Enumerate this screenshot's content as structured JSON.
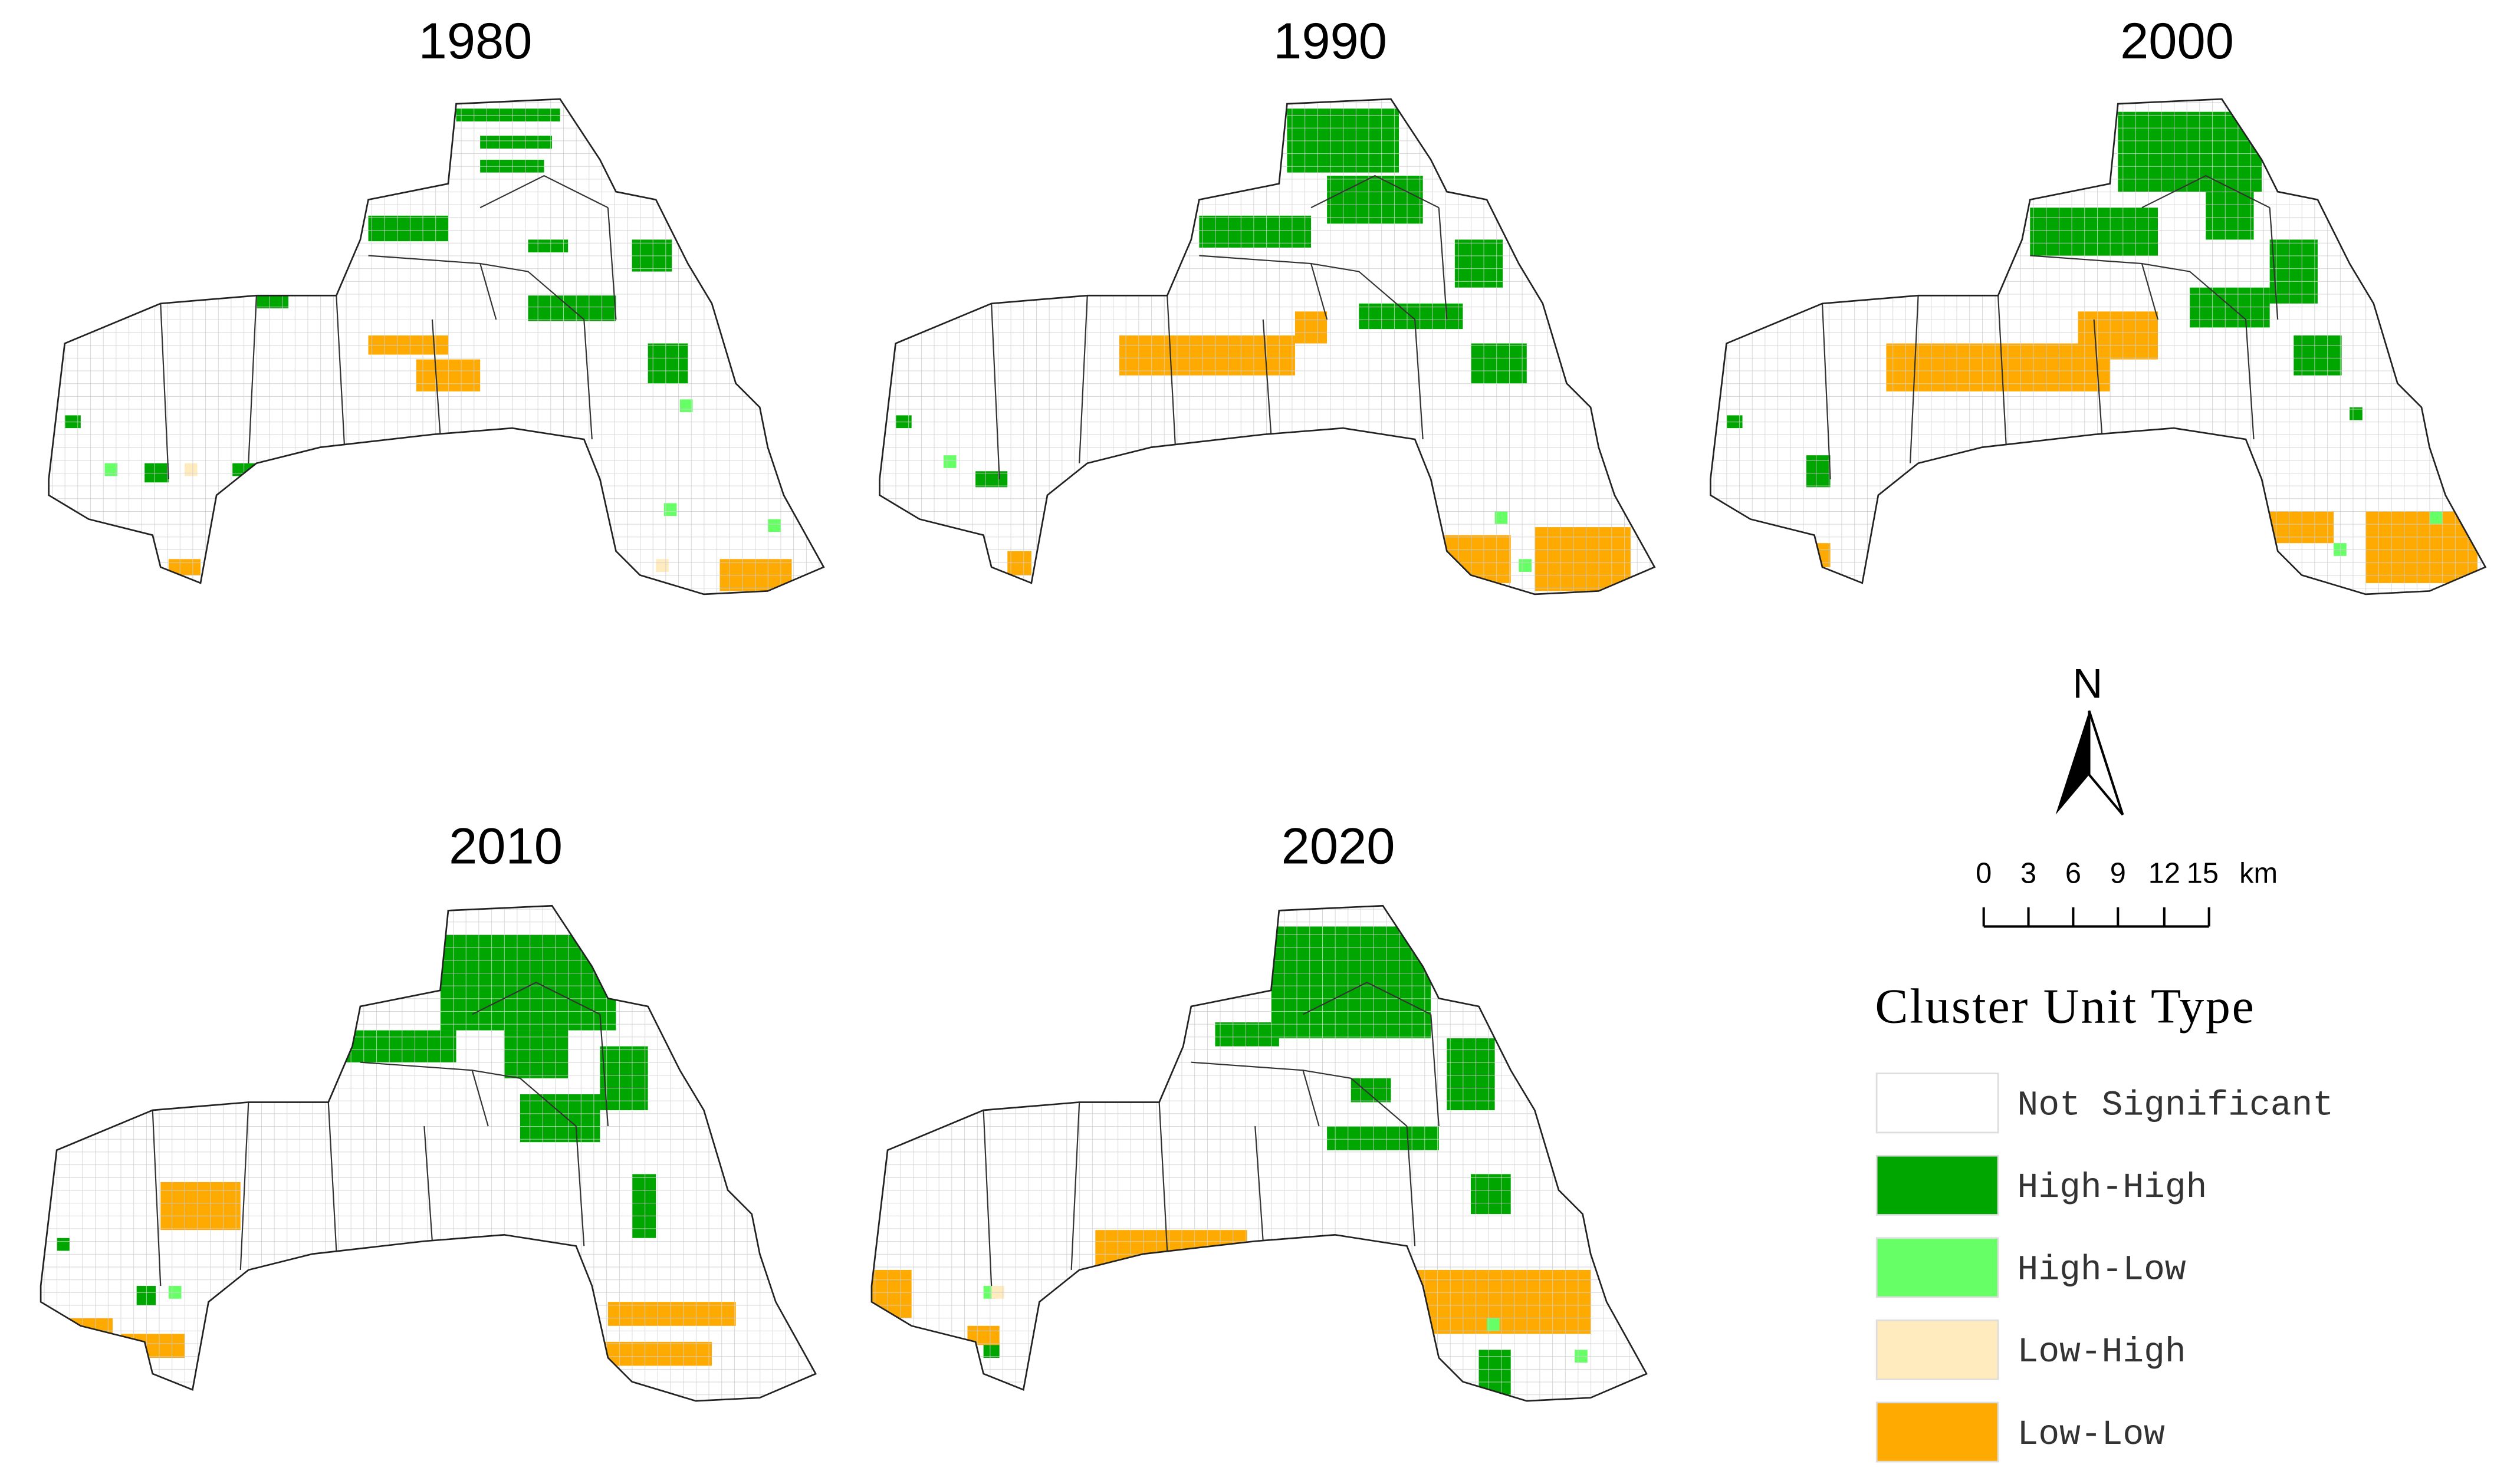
{
  "panels": [
    {
      "title": "1980"
    },
    {
      "title": "1990"
    },
    {
      "title": "2000"
    },
    {
      "title": "2010"
    },
    {
      "title": "2020"
    }
  ],
  "north": "N",
  "scale_bar": {
    "ticks": [
      0,
      3,
      6,
      9,
      12,
      15
    ],
    "unit": "km"
  },
  "legend": {
    "title": "Cluster Unit Type",
    "items": [
      {
        "label": "Not Significant",
        "color": "#ffffff"
      },
      {
        "label": "High-High",
        "color": "#00a600"
      },
      {
        "label": "High-Low",
        "color": "#66ff66"
      },
      {
        "label": "Low-High",
        "color": "#ffebbe"
      },
      {
        "label": "Low-Low",
        "color": "#ffaa00"
      }
    ]
  }
}
